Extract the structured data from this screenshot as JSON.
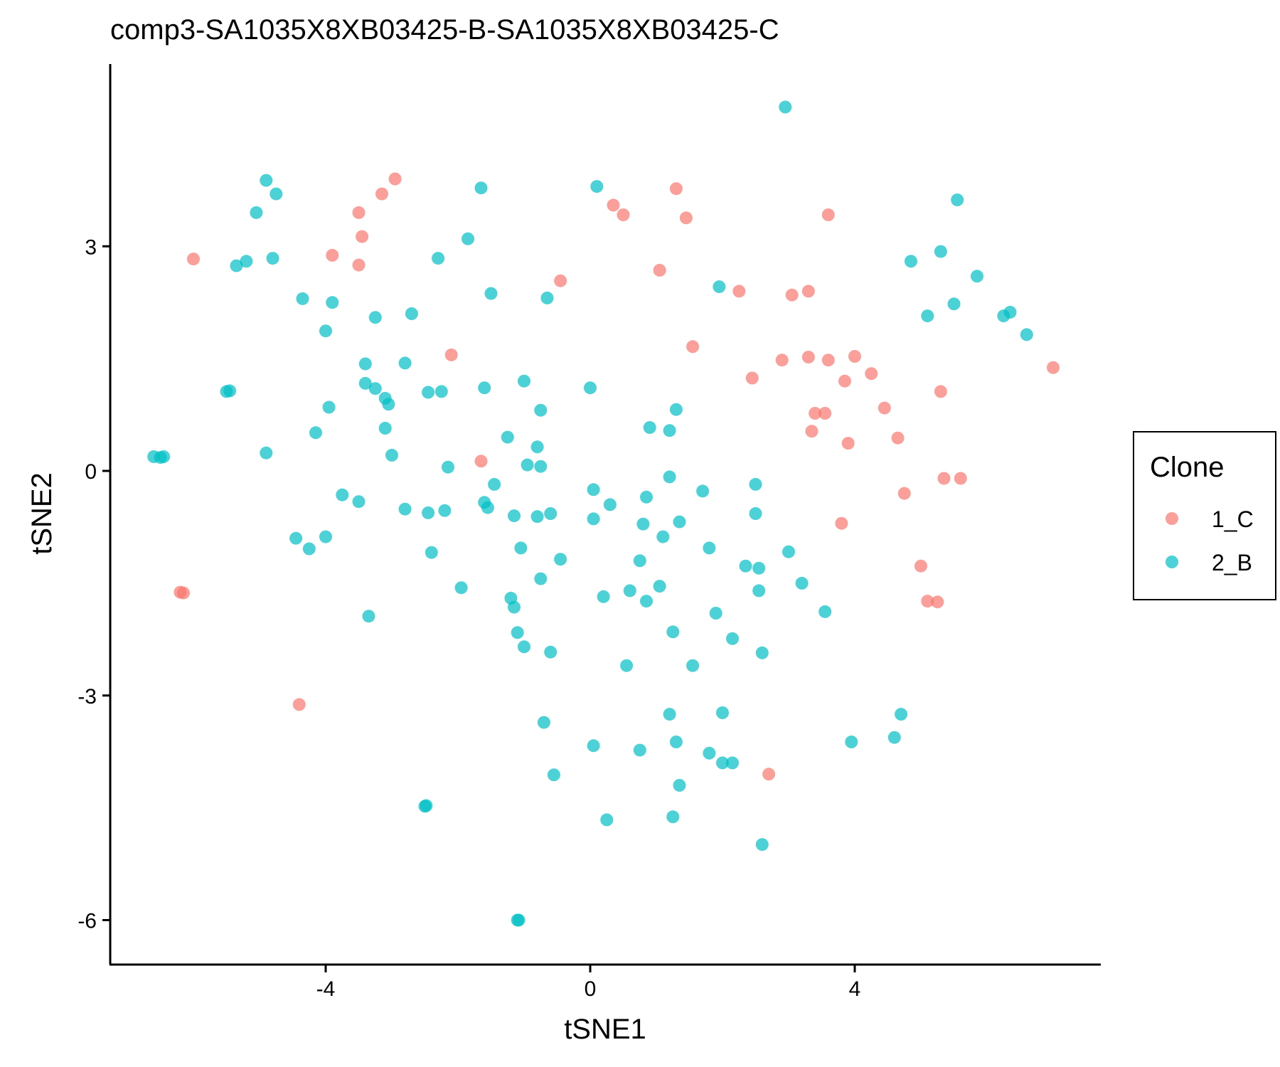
{
  "chart_data": {
    "type": "scatter",
    "title": "comp3-SA1035X8XB03425-B-SA1035X8XB03425-C",
    "xlabel": "tSNE1",
    "ylabel": "tSNE2",
    "xlim": [
      -7.2,
      7.6
    ],
    "ylim": [
      -6.5,
      5.4
    ],
    "xticks": [
      -4,
      0,
      4
    ],
    "yticks": [
      -6,
      -3,
      0,
      3
    ],
    "xtick_labels": [
      "-4",
      "0",
      "4"
    ],
    "ytick_labels": [
      "-6",
      "-3",
      "0",
      "3"
    ],
    "grid": false,
    "legend": {
      "title": "Clone",
      "placement": "right"
    },
    "series": [
      {
        "name": "1_C",
        "color": "#F8766D",
        "points": [
          [
            -6.0,
            2.83
          ],
          [
            -3.9,
            2.88
          ],
          [
            -3.45,
            3.13
          ],
          [
            -3.5,
            3.45
          ],
          [
            -3.5,
            2.75
          ],
          [
            -3.15,
            3.7
          ],
          [
            -2.95,
            3.9
          ],
          [
            -0.45,
            2.54
          ],
          [
            -2.1,
            1.55
          ],
          [
            -1.65,
            0.13
          ],
          [
            -6.2,
            -1.62
          ],
          [
            -6.15,
            -1.63
          ],
          [
            -4.4,
            -3.12
          ],
          [
            0.35,
            3.55
          ],
          [
            0.5,
            3.42
          ],
          [
            1.3,
            3.77
          ],
          [
            1.45,
            3.38
          ],
          [
            1.05,
            2.68
          ],
          [
            1.55,
            1.66
          ],
          [
            2.25,
            2.4
          ],
          [
            2.45,
            1.24
          ],
          [
            2.9,
            1.48
          ],
          [
            3.05,
            2.35
          ],
          [
            3.3,
            2.4
          ],
          [
            3.3,
            1.52
          ],
          [
            3.35,
            0.53
          ],
          [
            3.4,
            0.77
          ],
          [
            3.55,
            0.77
          ],
          [
            3.6,
            3.42
          ],
          [
            3.6,
            1.48
          ],
          [
            3.85,
            1.2
          ],
          [
            3.9,
            0.37
          ],
          [
            4.0,
            1.53
          ],
          [
            4.25,
            1.3
          ],
          [
            4.45,
            0.84
          ],
          [
            4.65,
            0.44
          ],
          [
            4.75,
            -0.3
          ],
          [
            3.8,
            -0.7
          ],
          [
            5.0,
            -1.27
          ],
          [
            5.1,
            -1.74
          ],
          [
            5.25,
            -1.75
          ],
          [
            5.3,
            1.06
          ],
          [
            5.35,
            -0.1
          ],
          [
            5.6,
            -0.1
          ],
          [
            7.0,
            1.38
          ],
          [
            2.7,
            -4.05
          ]
        ]
      },
      {
        "name": "2_B",
        "color": "#00BFC4",
        "points": [
          [
            -6.6,
            0.19
          ],
          [
            -6.5,
            0.18
          ],
          [
            -6.45,
            0.19
          ],
          [
            -5.5,
            1.06
          ],
          [
            -5.45,
            1.07
          ],
          [
            -5.35,
            2.74
          ],
          [
            -5.2,
            2.8
          ],
          [
            -5.05,
            3.45
          ],
          [
            -4.9,
            3.88
          ],
          [
            -4.8,
            2.84
          ],
          [
            -4.75,
            3.7
          ],
          [
            -4.9,
            0.24
          ],
          [
            -4.45,
            -0.9
          ],
          [
            -4.35,
            2.3
          ],
          [
            -4.25,
            -1.04
          ],
          [
            -4.15,
            0.51
          ],
          [
            -4.0,
            1.87
          ],
          [
            -4.0,
            -0.88
          ],
          [
            -3.95,
            0.85
          ],
          [
            -3.9,
            2.25
          ],
          [
            -3.75,
            -0.32
          ],
          [
            -3.5,
            -0.41
          ],
          [
            -3.4,
            1.43
          ],
          [
            -3.4,
            1.17
          ],
          [
            -3.35,
            -1.94
          ],
          [
            -3.25,
            2.05
          ],
          [
            -3.25,
            1.1
          ],
          [
            -3.1,
            0.97
          ],
          [
            -3.05,
            0.89
          ],
          [
            -3.1,
            0.57
          ],
          [
            -3.0,
            0.21
          ],
          [
            -2.8,
            -0.51
          ],
          [
            -2.8,
            1.44
          ],
          [
            -2.7,
            2.1
          ],
          [
            -2.5,
            -4.48
          ],
          [
            -2.48,
            -4.47
          ],
          [
            -2.45,
            -0.56
          ],
          [
            -2.45,
            1.05
          ],
          [
            -2.4,
            -1.09
          ],
          [
            -2.3,
            2.84
          ],
          [
            -2.25,
            1.06
          ],
          [
            -2.2,
            -0.53
          ],
          [
            -2.15,
            0.05
          ],
          [
            -1.95,
            -1.56
          ],
          [
            -1.85,
            3.1
          ],
          [
            -1.65,
            3.78
          ],
          [
            -1.6,
            1.11
          ],
          [
            -1.6,
            -0.42
          ],
          [
            -1.5,
            2.37
          ],
          [
            -1.55,
            -0.49
          ],
          [
            -1.45,
            -0.18
          ],
          [
            -1.25,
            0.45
          ],
          [
            -1.2,
            -1.7
          ],
          [
            -1.15,
            -0.6
          ],
          [
            -1.15,
            -1.82
          ],
          [
            -1.1,
            -2.16
          ],
          [
            -1.1,
            -6.0
          ],
          [
            -1.08,
            -6.0
          ],
          [
            -1.05,
            -1.03
          ],
          [
            -1.0,
            1.2
          ],
          [
            -1.0,
            -2.35
          ],
          [
            -0.95,
            0.08
          ],
          [
            -0.8,
            0.32
          ],
          [
            -0.8,
            -0.61
          ],
          [
            -0.75,
            0.06
          ],
          [
            -0.75,
            0.81
          ],
          [
            -0.75,
            -1.44
          ],
          [
            -0.7,
            -3.36
          ],
          [
            -0.6,
            -2.42
          ],
          [
            -0.65,
            2.31
          ],
          [
            -0.6,
            -0.57
          ],
          [
            -0.55,
            -4.06
          ],
          [
            -0.45,
            -1.18
          ],
          [
            0.0,
            1.11
          ],
          [
            0.05,
            -0.25
          ],
          [
            0.05,
            -0.64
          ],
          [
            0.05,
            -3.67
          ],
          [
            0.1,
            3.8
          ],
          [
            0.2,
            -1.68
          ],
          [
            0.25,
            -4.66
          ],
          [
            0.3,
            -0.45
          ],
          [
            0.55,
            -2.6
          ],
          [
            0.6,
            -1.6
          ],
          [
            0.75,
            -1.2
          ],
          [
            0.75,
            -3.73
          ],
          [
            0.8,
            -0.71
          ],
          [
            0.85,
            -0.35
          ],
          [
            0.85,
            -1.74
          ],
          [
            0.9,
            0.58
          ],
          [
            1.05,
            -1.54
          ],
          [
            1.1,
            -0.88
          ],
          [
            1.2,
            0.54
          ],
          [
            1.2,
            -0.08
          ],
          [
            1.2,
            -3.25
          ],
          [
            1.25,
            -2.15
          ],
          [
            1.25,
            -4.62
          ],
          [
            1.3,
            -3.62
          ],
          [
            1.3,
            0.82
          ],
          [
            1.35,
            -0.68
          ],
          [
            1.35,
            -4.2
          ],
          [
            1.55,
            -2.6
          ],
          [
            1.7,
            -0.27
          ],
          [
            1.8,
            -3.77
          ],
          [
            1.8,
            -1.03
          ],
          [
            1.9,
            -1.9
          ],
          [
            1.95,
            2.46
          ],
          [
            2.0,
            -3.23
          ],
          [
            2.0,
            -3.9
          ],
          [
            2.15,
            -2.24
          ],
          [
            2.15,
            -3.9
          ],
          [
            2.35,
            -1.27
          ],
          [
            2.5,
            -0.18
          ],
          [
            2.5,
            -0.57
          ],
          [
            2.55,
            -1.3
          ],
          [
            2.55,
            -1.6
          ],
          [
            2.6,
            -2.43
          ],
          [
            2.6,
            -4.99
          ],
          [
            2.95,
            4.86
          ],
          [
            3.0,
            -1.08
          ],
          [
            3.2,
            -1.5
          ],
          [
            3.55,
            -1.88
          ],
          [
            3.95,
            -3.62
          ],
          [
            4.6,
            -3.56
          ],
          [
            4.7,
            -3.25
          ],
          [
            4.85,
            2.8
          ],
          [
            5.1,
            2.07
          ],
          [
            5.3,
            2.93
          ],
          [
            5.5,
            2.23
          ],
          [
            5.55,
            3.62
          ],
          [
            5.85,
            2.6
          ],
          [
            6.25,
            2.07
          ],
          [
            6.35,
            2.12
          ],
          [
            6.6,
            1.82
          ]
        ]
      }
    ]
  }
}
